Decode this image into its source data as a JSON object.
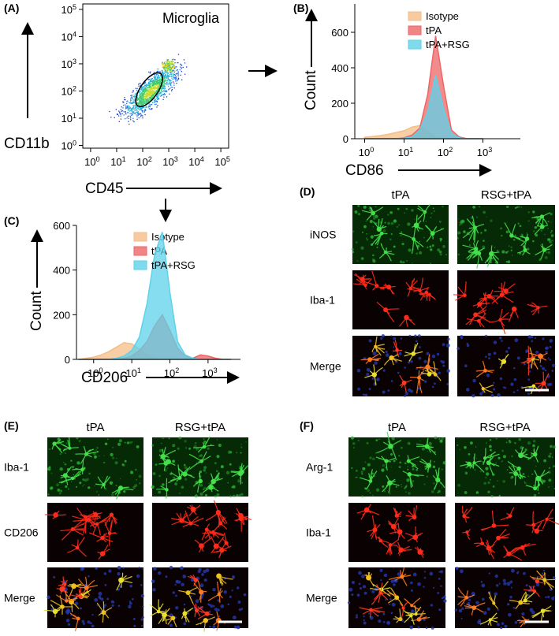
{
  "chart_data": [
    {
      "type": "scatter",
      "panel_label": "(A)",
      "title": "Microglia",
      "x_label": "CD45",
      "y_label": "CD11b",
      "xlim": [
        -0.3,
        5.3
      ],
      "ylim": [
        -0.1,
        5.2
      ],
      "xticks": [
        {
          "value": 0,
          "label": "10",
          "exponent": "0"
        },
        {
          "value": 1,
          "label": "10",
          "exponent": "1"
        },
        {
          "value": 2,
          "label": "10",
          "exponent": "2"
        },
        {
          "value": 3,
          "label": "10",
          "exponent": "3"
        },
        {
          "value": 4,
          "label": "10",
          "exponent": "4"
        },
        {
          "value": 5,
          "label": "10",
          "exponent": "5"
        }
      ],
      "yticks": [
        {
          "value": 0,
          "label": "10",
          "exponent": "0"
        },
        {
          "value": 1,
          "label": "10",
          "exponent": "1"
        },
        {
          "value": 2,
          "label": "10",
          "exponent": "2"
        },
        {
          "value": 3,
          "label": "10",
          "exponent": "3"
        },
        {
          "value": 4,
          "label": "10",
          "exponent": "4"
        },
        {
          "value": 5,
          "label": "10",
          "exponent": "5"
        }
      ]
    },
    {
      "type": "area",
      "panel_label": "(B)",
      "x_label": "CD86",
      "y_label": "Count",
      "xlim": [
        -0.25,
        3.95
      ],
      "ylim": [
        0,
        760
      ],
      "xticks": [
        {
          "value": 0,
          "label": "10",
          "exponent": "0"
        },
        {
          "value": 1,
          "label": "10",
          "exponent": "1"
        },
        {
          "value": 2,
          "label": "10",
          "exponent": "2"
        },
        {
          "value": 3,
          "label": "10",
          "exponent": "3"
        }
      ],
      "yticks": [
        0,
        200,
        400,
        600
      ],
      "x": [
        0,
        0.2,
        0.4,
        0.6,
        0.8,
        1.0,
        1.2,
        1.4,
        1.6,
        1.8,
        2.0,
        2.2,
        2.4,
        2.6,
        2.8,
        3.0
      ],
      "series": [
        {
          "name": "Isotype",
          "color": "#f5bd88",
          "values": [
            8,
            12,
            18,
            25,
            35,
            45,
            65,
            75,
            40,
            8,
            0,
            0,
            0,
            0,
            0,
            0
          ]
        },
        {
          "name": "tPA",
          "color": "#ee6565",
          "values": [
            0,
            0,
            0,
            0,
            0,
            5,
            20,
            60,
            250,
            580,
            300,
            50,
            10,
            0,
            0,
            0
          ]
        },
        {
          "name": "tPA+RSG",
          "color": "#5ed2ea",
          "values": [
            0,
            0,
            0,
            0,
            0,
            3,
            10,
            50,
            150,
            360,
            170,
            30,
            5,
            0,
            0,
            0
          ]
        }
      ]
    },
    {
      "type": "area",
      "panel_label": "(C)",
      "x_label": "CD206",
      "y_label": "Count",
      "xlim": [
        -0.45,
        3.85
      ],
      "ylim": [
        0,
        600
      ],
      "xticks": [
        {
          "value": 0,
          "label": "10",
          "exponent": "0"
        },
        {
          "value": 1,
          "label": "10",
          "exponent": "1"
        },
        {
          "value": 2,
          "label": "10",
          "exponent": "2"
        },
        {
          "value": 3,
          "label": "10",
          "exponent": "3"
        }
      ],
      "yticks": [
        0,
        200,
        400,
        600
      ],
      "x": [
        -0.4,
        -0.2,
        0,
        0.2,
        0.4,
        0.6,
        0.8,
        1.0,
        1.2,
        1.4,
        1.6,
        1.8,
        2.0,
        2.2,
        2.4,
        2.6,
        2.8,
        3.0,
        3.2,
        3.4,
        3.6
      ],
      "series": [
        {
          "name": "Isotype",
          "color": "#f5bd88",
          "values": [
            0,
            5,
            10,
            20,
            35,
            55,
            75,
            70,
            45,
            20,
            5,
            0,
            0,
            0,
            0,
            0,
            0,
            0,
            0,
            0,
            0
          ]
        },
        {
          "name": "tPA",
          "color": "#ee6565",
          "values": [
            0,
            0,
            0,
            0,
            0,
            0,
            5,
            15,
            40,
            80,
            150,
            200,
            130,
            50,
            15,
            5,
            20,
            15,
            5,
            0,
            0
          ]
        },
        {
          "name": "tPA+RSG",
          "color": "#5ed2ea",
          "values": [
            0,
            0,
            0,
            0,
            0,
            5,
            15,
            40,
            100,
            250,
            470,
            570,
            300,
            80,
            20,
            5,
            0,
            0,
            0,
            0,
            0
          ]
        }
      ]
    }
  ],
  "panels": [
    {
      "label": "(D)",
      "columns": [
        "tPA",
        "RSG+tPA"
      ],
      "rows": [
        "iNOS",
        "Iba-1",
        "Merge"
      ]
    },
    {
      "label": "(E)",
      "columns": [
        "tPA",
        "RSG+tPA"
      ],
      "rows": [
        "Iba-1",
        "CD206",
        "Merge"
      ]
    },
    {
      "label": "(F)",
      "columns": [
        "tPA",
        "RSG+tPA"
      ],
      "rows": [
        "Arg-1",
        "Iba-1",
        "Merge"
      ]
    }
  ]
}
